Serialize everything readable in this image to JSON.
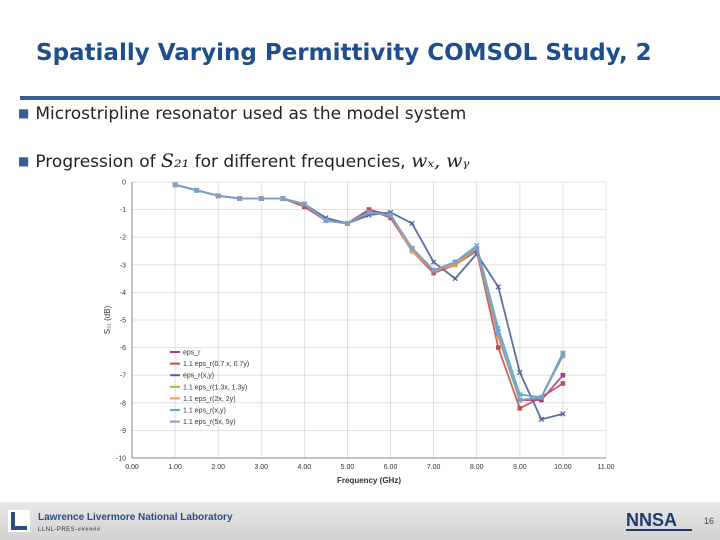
{
  "slide": {
    "title": "Spatially Varying Permittivity COMSOL Study, 2",
    "bullet1": "Microstripline resonator used as the model system",
    "bullet2_prefix": "Progression of ",
    "bullet2_math1": "S₂₁",
    "bullet2_middle": " for different frequencies, ",
    "bullet2_math2": "wₓ, wᵧ",
    "footer_org": "Lawrence Livermore National Laboratory",
    "footer_code": "LLNL-PRES-######",
    "page_number": "16"
  },
  "colors": {
    "title": "#1f4e8c",
    "rule": "#3a5f8f"
  },
  "chart_data": {
    "type": "line",
    "xlabel": "Frequency (GHz)",
    "ylabel": "S₂₁ (dB)",
    "xlim": [
      0,
      11
    ],
    "ylim": [
      -10,
      0
    ],
    "xticks": [
      "0.00",
      "1.00",
      "2.00",
      "3.00",
      "4.00",
      "5.00",
      "6.00",
      "7.00",
      "8.00",
      "9.00",
      "10.00",
      "11.00"
    ],
    "yticks": [
      "0",
      "-1",
      "-2",
      "-3",
      "-4",
      "-5",
      "-6",
      "-7",
      "-8",
      "-9",
      "-10"
    ],
    "grid": true,
    "legend_position": "bottom-left",
    "x": [
      1.0,
      1.5,
      2.0,
      2.5,
      3.0,
      3.5,
      4.0,
      4.5,
      5.0,
      5.5,
      6.0,
      6.5,
      7.0,
      7.5,
      8.0,
      8.5,
      9.0,
      9.5,
      10.0
    ],
    "series": [
      {
        "name": "eps_r",
        "color": "#a0408a",
        "marker": "square",
        "values": [
          -0.1,
          -0.3,
          -0.5,
          -0.6,
          -0.6,
          -0.6,
          -0.8,
          -1.4,
          -1.5,
          -1.0,
          -1.2,
          -2.4,
          -3.2,
          -2.9,
          -2.4,
          -5.6,
          -7.9,
          -7.9,
          -7.0
        ]
      },
      {
        "name": "1.1 eps_r(0.7 x, 0.7y)",
        "color": "#c0504d",
        "marker": "square",
        "values": [
          -0.1,
          -0.3,
          -0.5,
          -0.6,
          -0.6,
          -0.6,
          -0.9,
          -1.4,
          -1.5,
          -1.0,
          -1.3,
          -2.5,
          -3.3,
          -3.0,
          -2.5,
          -6.0,
          -8.2,
          -7.8,
          -7.3
        ]
      },
      {
        "name": "eps_r(x,y)",
        "color": "#4a5f9c",
        "marker": "x",
        "values": [
          -0.1,
          -0.3,
          -0.5,
          -0.6,
          -0.6,
          -0.6,
          -0.8,
          -1.3,
          -1.5,
          -1.2,
          -1.1,
          -1.5,
          -2.9,
          -3.5,
          -2.6,
          -3.8,
          -6.9,
          -8.6,
          -8.4
        ]
      },
      {
        "name": "1.1 eps_r(1.3x, 1.3y)",
        "color": "#9bbb59",
        "marker": "x",
        "values": [
          -0.1,
          -0.3,
          -0.5,
          -0.6,
          -0.6,
          -0.6,
          -0.8,
          -1.4,
          -1.5,
          -1.1,
          -1.2,
          -2.5,
          -3.2,
          -3.0,
          -2.4,
          -5.6,
          -7.9,
          -7.8,
          -6.3
        ]
      },
      {
        "name": "1.1 eps_r(2x, 2y)",
        "color": "#f79646",
        "marker": "circle",
        "values": [
          -0.1,
          -0.3,
          -0.5,
          -0.6,
          -0.6,
          -0.6,
          -0.8,
          -1.4,
          -1.5,
          -1.1,
          -1.2,
          -2.5,
          -3.2,
          -3.0,
          -2.4,
          -5.6,
          -7.9,
          -7.8,
          -6.2
        ]
      },
      {
        "name": "1.1 eps_r(x,y)",
        "color": "#4bacc6",
        "marker": "x",
        "values": [
          -0.1,
          -0.3,
          -0.5,
          -0.6,
          -0.6,
          -0.6,
          -0.8,
          -1.4,
          -1.5,
          -1.1,
          -1.2,
          -2.4,
          -3.2,
          -2.9,
          -2.3,
          -5.3,
          -7.7,
          -7.8,
          -6.2
        ]
      },
      {
        "name": "1.1 eps_r(5x, 5y)",
        "color": "#7f9fcf",
        "marker": "square",
        "values": [
          -0.1,
          -0.3,
          -0.5,
          -0.6,
          -0.6,
          -0.6,
          -0.8,
          -1.4,
          -1.5,
          -1.1,
          -1.2,
          -2.4,
          -3.2,
          -2.9,
          -2.4,
          -5.5,
          -7.9,
          -7.8,
          -6.3
        ]
      }
    ]
  }
}
